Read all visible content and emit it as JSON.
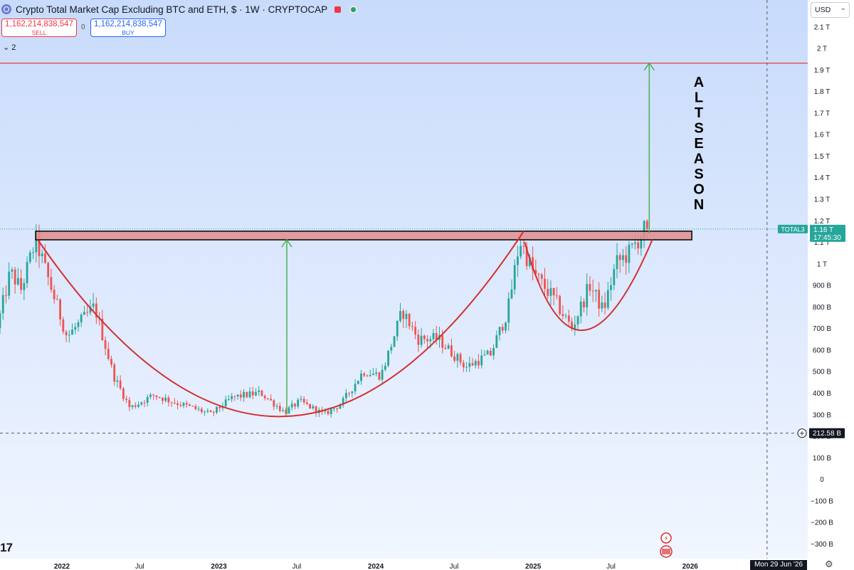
{
  "header": {
    "title": "Crypto Total Market Cap Excluding BTC and ETH, $ · 1W · CRYPTOCAP",
    "sell_price": "1,162,214,838,547",
    "sell_label": "SELL",
    "buy_price": "1,162,214,838,547",
    "buy_label": "BUY",
    "spread": "0",
    "collapse_label": "2",
    "currency": "USD"
  },
  "colors": {
    "background_top": "#c8dbfb",
    "background_bottom": "#f1f6ff",
    "candle_up": "#26a69a",
    "candle_down": "#ef5350",
    "cup_curve": "#d32f2f",
    "resistance_zone": "#e08d8d",
    "target_line": "#e53935",
    "arrow": "#4caf50",
    "price_tag": "#26a69a",
    "crosshair_tag": "#131722"
  },
  "annotations": {
    "vertical_text": "ALTSEASON"
  },
  "crosshair": {
    "price_label": "212.58 B",
    "date_label": "Mon 29 Jun '26"
  },
  "price_tag": {
    "symbol": "TOTAL3",
    "value": "1.16 T",
    "countdown": "17:45:30"
  },
  "chart_data": {
    "type": "candlestick",
    "symbol": "TOTAL3",
    "title": "Crypto Total Market Cap Excluding BTC and ETH, $ · 1W · CRYPTOCAP",
    "y_unit": "USD",
    "ylim": [
      -330000000000,
      2190000000000
    ],
    "y_ticks": [
      {
        "v": 2100000000000,
        "label": "2.1 T"
      },
      {
        "v": 2000000000000,
        "label": "2 T"
      },
      {
        "v": 1900000000000,
        "label": "1.9 T"
      },
      {
        "v": 1800000000000,
        "label": "1.8 T"
      },
      {
        "v": 1700000000000,
        "label": "1.7 T"
      },
      {
        "v": 1600000000000,
        "label": "1.6 T"
      },
      {
        "v": 1500000000000,
        "label": "1.5 T"
      },
      {
        "v": 1400000000000,
        "label": "1.4 T"
      },
      {
        "v": 1300000000000,
        "label": "1.3 T"
      },
      {
        "v": 1200000000000,
        "label": "1.2 T"
      },
      {
        "v": 1100000000000,
        "label": "1.1 T"
      },
      {
        "v": 1000000000000,
        "label": "1 T"
      },
      {
        "v": 900000000000,
        "label": "900 B"
      },
      {
        "v": 800000000000,
        "label": "800 B"
      },
      {
        "v": 700000000000,
        "label": "700 B"
      },
      {
        "v": 600000000000,
        "label": "600 B"
      },
      {
        "v": 500000000000,
        "label": "500 B"
      },
      {
        "v": 400000000000,
        "label": "400 B"
      },
      {
        "v": 300000000000,
        "label": "300 B"
      },
      {
        "v": 200000000000,
        "label": "200 B"
      },
      {
        "v": 100000000000,
        "label": "100 B"
      },
      {
        "v": 0,
        "label": "0"
      },
      {
        "v": -100000000000,
        "label": "−100 B"
      },
      {
        "v": -200000000000,
        "label": "−200 B"
      },
      {
        "v": -300000000000,
        "label": "−300 B"
      }
    ],
    "x_range": [
      "2021-08-10",
      "2026-09-20"
    ],
    "x_ticks": [
      {
        "date": "2022-01-01",
        "label": "2022"
      },
      {
        "date": "2022-07-01",
        "label": "Jul"
      },
      {
        "date": "2023-01-01",
        "label": "2023"
      },
      {
        "date": "2023-07-01",
        "label": "Jul"
      },
      {
        "date": "2024-01-01",
        "label": "2024"
      },
      {
        "date": "2024-07-01",
        "label": "Jul"
      },
      {
        "date": "2025-01-01",
        "label": "2025"
      },
      {
        "date": "2025-07-01",
        "label": "Jul"
      },
      {
        "date": "2026-01-01",
        "label": "2026"
      }
    ],
    "price_path": [
      [
        "2021-08-10",
        700
      ],
      [
        "2021-09-10",
        960
      ],
      [
        "2021-10-05",
        880
      ],
      [
        "2021-11-08",
        1110
      ],
      [
        "2021-12-15",
        880
      ],
      [
        "2022-01-20",
        660
      ],
      [
        "2022-03-25",
        800
      ],
      [
        "2022-05-08",
        480
      ],
      [
        "2022-06-15",
        330
      ],
      [
        "2022-08-10",
        390
      ],
      [
        "2022-09-20",
        360
      ],
      [
        "2022-11-08",
        330
      ],
      [
        "2022-12-20",
        300
      ],
      [
        "2023-02-10",
        380
      ],
      [
        "2023-04-15",
        400
      ],
      [
        "2023-06-10",
        310
      ],
      [
        "2023-07-15",
        360
      ],
      [
        "2023-09-10",
        300
      ],
      [
        "2023-10-20",
        350
      ],
      [
        "2023-12-10",
        500
      ],
      [
        "2024-01-20",
        480
      ],
      [
        "2024-03-10",
        780
      ],
      [
        "2024-04-15",
        650
      ],
      [
        "2024-06-01",
        650
      ],
      [
        "2024-08-05",
        520
      ],
      [
        "2024-10-01",
        580
      ],
      [
        "2024-11-10",
        780
      ],
      [
        "2024-12-08",
        1110
      ],
      [
        "2025-01-10",
        950
      ],
      [
        "2025-02-20",
        850
      ],
      [
        "2025-04-08",
        700
      ],
      [
        "2025-05-20",
        900
      ],
      [
        "2025-06-20",
        780
      ],
      [
        "2025-07-20",
        1000
      ],
      [
        "2025-08-20",
        1050
      ],
      [
        "2025-09-25",
        1160
      ]
    ],
    "resistance_zone": {
      "from": 1110000000000,
      "to": 1150000000000,
      "start": "2021-11-01",
      "end": "2026-01-05"
    },
    "target_line": {
      "value": 1930000000000
    },
    "cup_curve_1": [
      [
        "2021-11-06",
        1110
      ],
      [
        "2023-05-28",
        290
      ],
      [
        "2024-12-10",
        1150
      ]
    ],
    "cup_curve_2": [
      [
        "2024-12-12",
        1100
      ],
      [
        "2025-04-25",
        690
      ],
      [
        "2025-10-05",
        1110
      ]
    ],
    "arrows": [
      {
        "date": "2023-06-08",
        "from": 300000000000,
        "to": 1110000000000
      },
      {
        "date": "2025-09-28",
        "from": 1140000000000,
        "to": 1930000000000
      }
    ],
    "last_price": 1160000000000,
    "crosshair_price": 212580000000,
    "crosshair_date": "2026-06-29"
  }
}
